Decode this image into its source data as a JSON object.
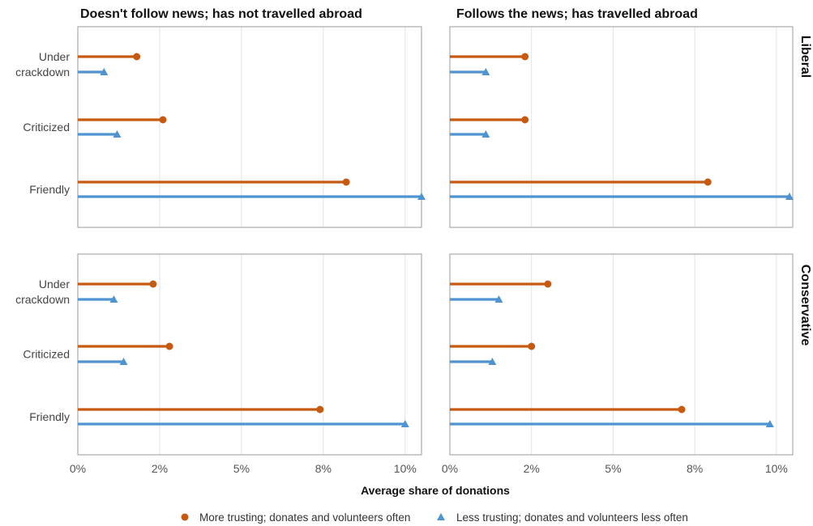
{
  "chart_data": {
    "type": "dot-bar",
    "xlabel": "Average share of donations",
    "xlim": [
      0,
      10.5
    ],
    "x_ticks": [
      0,
      2.5,
      5,
      7.5,
      10
    ],
    "x_tick_labels": [
      "0%",
      "2%",
      "5%",
      "8%",
      "10%"
    ],
    "categories": [
      "Under\ncrackdown",
      "Criticized",
      "Friendly"
    ],
    "columns": [
      "Doesn't follow news; has not travelled abroad",
      "Follows the news; has travelled abroad"
    ],
    "rows": [
      "Liberal",
      "Conservative"
    ],
    "series": [
      {
        "name": "More trusting; donates and volunteers often",
        "color": "#c65a11",
        "marker": "circle"
      },
      {
        "name": "Less trusting; donates and volunteers less often",
        "color": "#4f93d1",
        "marker": "triangle"
      }
    ],
    "panels": [
      {
        "row": "Liberal",
        "column": "Doesn't follow news; has not travelled abroad",
        "values": {
          "More trusting; donates and volunteers often": [
            1.8,
            2.6,
            8.2
          ],
          "Less trusting; donates and volunteers less often": [
            0.8,
            1.2,
            10.5
          ]
        }
      },
      {
        "row": "Liberal",
        "column": "Follows the news; has travelled abroad",
        "values": {
          "More trusting; donates and volunteers often": [
            2.3,
            2.3,
            7.9
          ],
          "Less trusting; donates and volunteers less often": [
            1.1,
            1.1,
            10.4
          ]
        }
      },
      {
        "row": "Conservative",
        "column": "Doesn't follow news; has not travelled abroad",
        "values": {
          "More trusting; donates and volunteers often": [
            2.3,
            2.8,
            7.4
          ],
          "Less trusting; donates and volunteers less often": [
            1.1,
            1.4,
            10.0
          ]
        }
      },
      {
        "row": "Conservative",
        "column": "Follows the news; has travelled abroad",
        "values": {
          "More trusting; donates and volunteers often": [
            3.0,
            2.5,
            7.1
          ],
          "Less trusting; donates and volunteers less often": [
            1.5,
            1.3,
            9.8
          ]
        }
      }
    ],
    "legend_position": "bottom",
    "grid": true
  }
}
